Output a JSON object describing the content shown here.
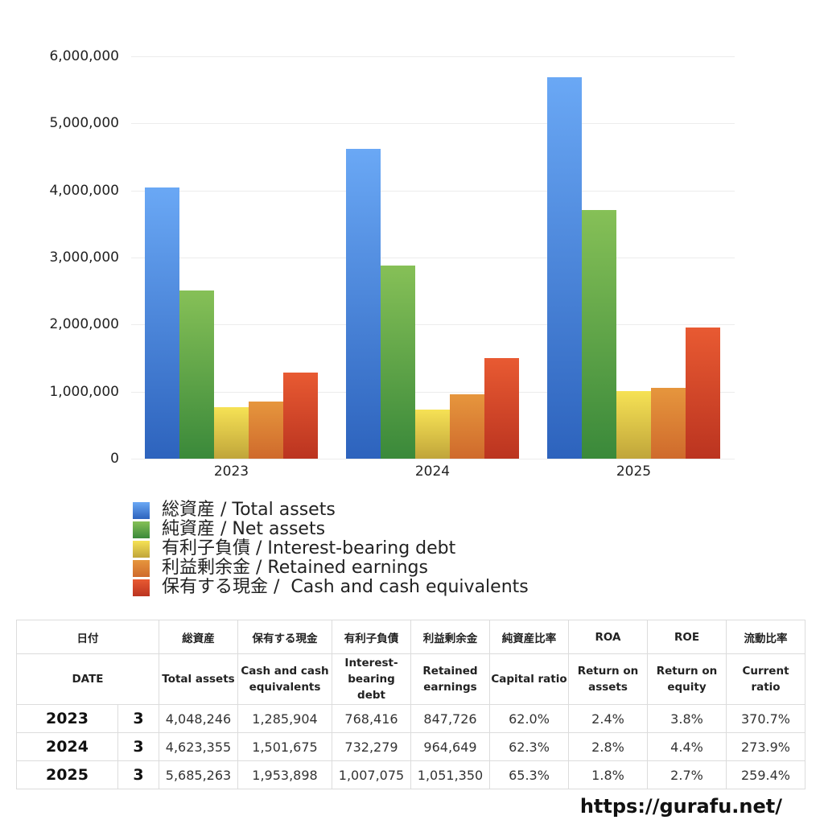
{
  "chart_data": {
    "type": "bar",
    "title": "",
    "xlabel": "",
    "ylabel": "",
    "categories": [
      "2023",
      "2024",
      "2025"
    ],
    "ylim": [
      0,
      6000000
    ],
    "yticks": [
      "6,000,000",
      "5,000,000",
      "4,000,000",
      "3,000,000",
      "2,000,000",
      "1,000,000",
      "0"
    ],
    "grid": true,
    "legend_position": "bottom",
    "series": [
      {
        "name": "総資産 / Total assets",
        "color": "#4a86e0",
        "values": [
          4048246,
          4623355,
          5685263
        ]
      },
      {
        "name": "純資産 / Net assets",
        "color": "#5aa845",
        "values": [
          2509913,
          2880350,
          3712477
        ]
      },
      {
        "name": "有利子負債 / Interest-bearing debt",
        "color": "#e8cf45",
        "values": [
          768416,
          732279,
          1007075
        ]
      },
      {
        "name": "利益剰余金 / Retained earnings",
        "color": "#df8a3a",
        "values": [
          847726,
          964649,
          1051350
        ]
      },
      {
        "name": "保有する現金 /  Cash and cash equivalents",
        "color": "#d8492c",
        "values": [
          1285904,
          1501675,
          1953898
        ]
      }
    ]
  },
  "legend": [
    "総資産 / Total assets",
    "純資産 / Net assets",
    "有利子負債 / Interest-bearing debt",
    "利益剰余金 / Retained earnings",
    "保有する現金 /  Cash and cash equivalents"
  ],
  "table": {
    "header_jp": [
      "日付",
      "",
      "総資産",
      "保有する現金",
      "有利子負債",
      "利益剰余金",
      "純資産比率",
      "ROA",
      "ROE",
      "流動比率"
    ],
    "header_en": [
      "DATE",
      "",
      "Total assets",
      "Cash and cash equivalents",
      "Interest-bearing debt",
      "Retained earnings",
      "Capital ratio",
      "Return on assets",
      "Return on equity",
      "Current ratio"
    ],
    "rows": [
      [
        "2023",
        "3",
        "4,048,246",
        "1,285,904",
        "768,416",
        "847,726",
        "62.0%",
        "2.4%",
        "3.8%",
        "370.7%"
      ],
      [
        "2024",
        "3",
        "4,623,355",
        "1,501,675",
        "732,279",
        "964,649",
        "62.3%",
        "2.8%",
        "4.4%",
        "273.9%"
      ],
      [
        "2025",
        "3",
        "5,685,263",
        "1,953,898",
        "1,007,075",
        "1,051,350",
        "65.3%",
        "1.8%",
        "2.7%",
        "259.4%"
      ]
    ]
  },
  "footer": {
    "url_text": "https://gurafu.net/"
  }
}
